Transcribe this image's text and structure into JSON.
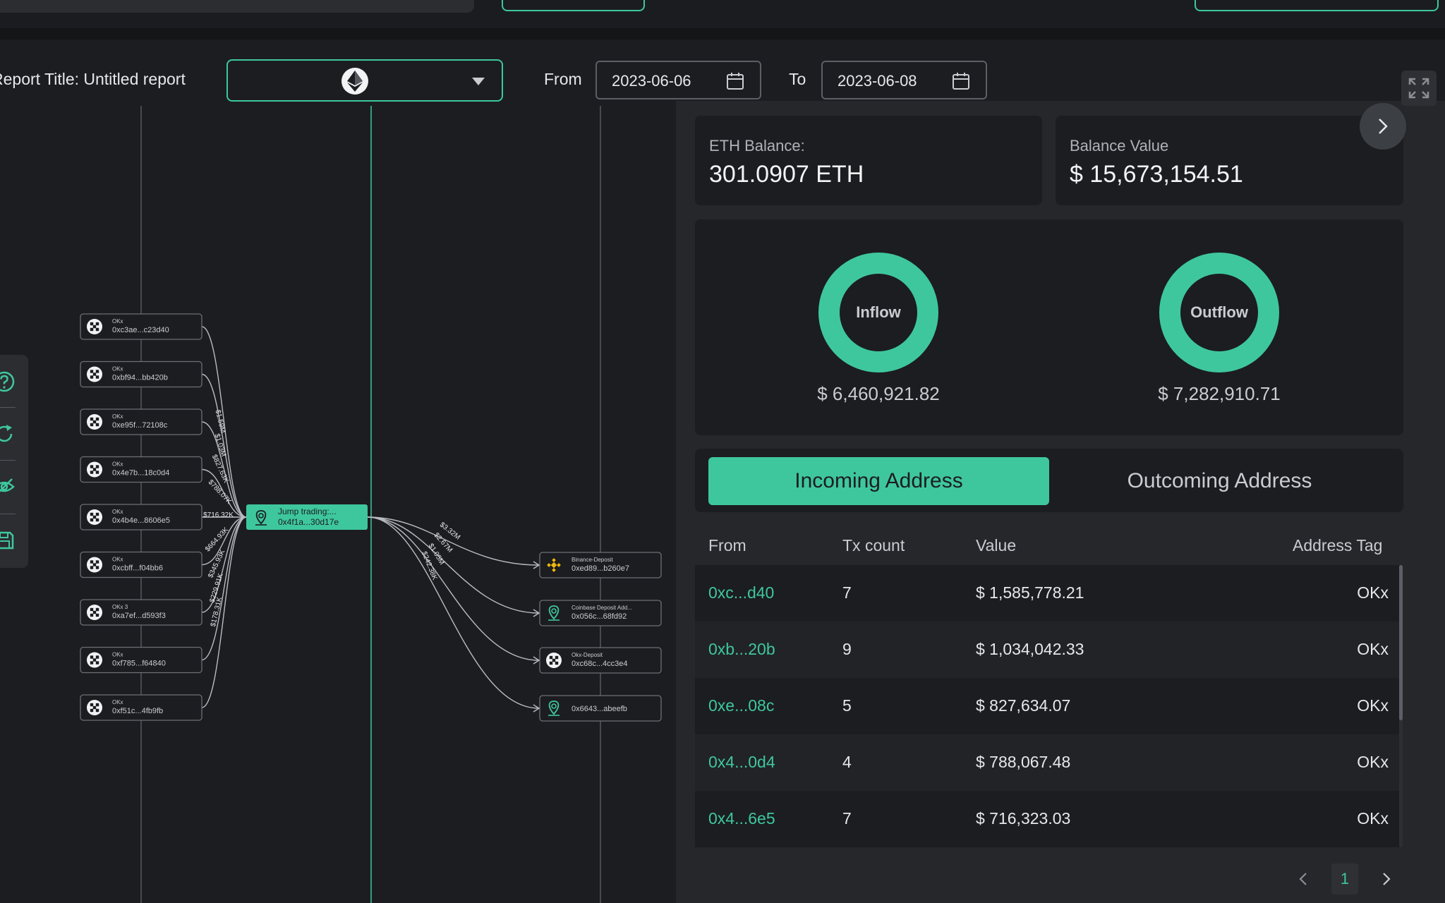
{
  "report": {
    "title": "Report Title: Untitled report"
  },
  "date_range": {
    "from_label": "From",
    "from": "2023-06-06",
    "to_label": "To",
    "to": "2023-06-08"
  },
  "chain": {
    "selected": "ethereum-icon"
  },
  "graph": {
    "center": {
      "name": "Jump trading:...",
      "addr": "0x4f1a...30d17e"
    },
    "sources": [
      {
        "tag": "OKx",
        "addr": "0xc3ae...c23d40",
        "amount": "$1.59M"
      },
      {
        "tag": "OKx",
        "addr": "0xbf94...bb420b",
        "amount": "$1.03M"
      },
      {
        "tag": "OKx",
        "addr": "0xe95f...72108c",
        "amount": "$827.63K"
      },
      {
        "tag": "OKx",
        "addr": "0x4e7b...18c0d4",
        "amount": "$788.07K"
      },
      {
        "tag": "OKx",
        "addr": "0x4b4e...8606e5",
        "amount": "$716.32K"
      },
      {
        "tag": "OKx",
        "addr": "0xcbff...f04bb6",
        "amount": "$664.93K"
      },
      {
        "tag": "OKx 3",
        "addr": "0xa7ef...d593f3",
        "amount": "$345.93K"
      },
      {
        "tag": "OKx",
        "addr": "0xf785...f64840",
        "amount": "$229.91K"
      },
      {
        "tag": "OKx",
        "addr": "0xf51c...4fb9fb",
        "amount": "$178.31K"
      }
    ],
    "targets": [
      {
        "tag": "Binance-Deposit",
        "addr": "0xed89...b260e7",
        "icon": "binance-icon",
        "amount": "$3.32M"
      },
      {
        "tag": "Coinbase Deposit Add...",
        "addr": "0x056c...68fd92",
        "icon": "location-icon",
        "amount": "$2.67M"
      },
      {
        "tag": "Okx-Deposit",
        "addr": "0xc68c...4cc3e4",
        "icon": "okx-icon",
        "amount": "$1.05M"
      },
      {
        "tag": "",
        "addr": "0x6643...abeefb",
        "icon": "location-icon",
        "amount": "$242.38K"
      }
    ]
  },
  "balance": {
    "label": "ETH Balance:",
    "value": "301.0907 ETH"
  },
  "balance_value": {
    "label": "Balance Value",
    "value": "$ 15,673,154.51"
  },
  "flows": {
    "inflow": {
      "label": "Inflow",
      "value": "$ 6,460,921.82"
    },
    "outflow": {
      "label": "Outflow",
      "value": "$ 7,282,910.71"
    }
  },
  "tabs": {
    "incoming": "Incoming Address",
    "outgoing": "Outcoming Address"
  },
  "table": {
    "headers": {
      "from": "From",
      "tx": "Tx count",
      "value": "Value",
      "tag": "Address Tag"
    },
    "rows": [
      {
        "from": "0xc...d40",
        "tx": "7",
        "value": "$ 1,585,778.21",
        "tag": "OKx"
      },
      {
        "from": "0xb...20b",
        "tx": "9",
        "value": "$ 1,034,042.33",
        "tag": "OKx"
      },
      {
        "from": "0xe...08c",
        "tx": "5",
        "value": "$ 827,634.07",
        "tag": "OKx"
      },
      {
        "from": "0x4...0d4",
        "tx": "4",
        "value": "$ 788,067.48",
        "tag": "OKx"
      },
      {
        "from": "0x4...6e5",
        "tx": "7",
        "value": "$ 716,323.03",
        "tag": "OKx"
      }
    ]
  },
  "pagination": {
    "current": "1"
  },
  "colors": {
    "accent": "#3ec79d",
    "background": "#1c1d20",
    "panel": "#26272b"
  }
}
